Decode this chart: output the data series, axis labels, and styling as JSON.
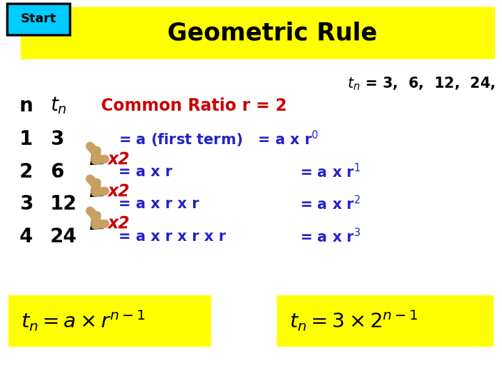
{
  "title": "Geometric Rule",
  "bg_color": "#ffffff",
  "yellow": "#FFFF00",
  "gold_arrow": "#C8A060",
  "start_box_fill": "#00CCFF",
  "start_border": "#000000",
  "black": "#000000",
  "blue": "#2222CC",
  "red": "#CC0000",
  "top_right_text": "t_n = 3, 6,  12,  24,",
  "header_n": "n",
  "header_tn": "t",
  "common_ratio": "Common Ratio r = 2",
  "n_vals": [
    "1",
    "2",
    "3",
    "4"
  ],
  "t_vals": [
    "3",
    "6",
    "12",
    "24"
  ],
  "row_eq_left": [
    "= a (first term)",
    "= a x r",
    "= a x r x r",
    "= a x r x r x r"
  ],
  "row_eq_right": [
    "= a x r",
    "= a x r",
    "= a x r",
    "= a x r"
  ],
  "exponents": [
    "0",
    "1",
    "2",
    "3"
  ],
  "x2_label": "x2",
  "formula_left": "t_n = a x r^{n-1}",
  "formula_right": "t_n = 3 x 2^{n-1}"
}
